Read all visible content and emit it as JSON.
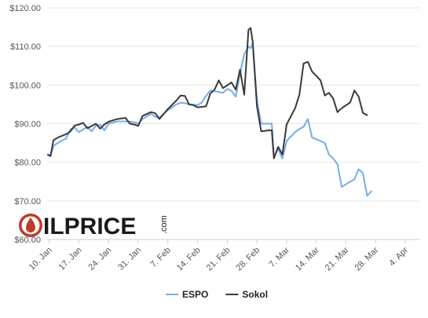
{
  "chart_data": {
    "type": "line",
    "title": "",
    "xlabel": "",
    "ylabel": "",
    "ylim": [
      60,
      120
    ],
    "ytick_labels": [
      "$60.00",
      "$70.00",
      "$80.00",
      "$90.00",
      "$100.00",
      "$110.00",
      "$120.00"
    ],
    "ytick_values": [
      60,
      70,
      80,
      90,
      100,
      110,
      120
    ],
    "xtick_labels": [
      "10. Jan",
      "17. Jan",
      "24. Jan",
      "31. Jan",
      "7. Feb",
      "14. Feb",
      "21. Feb",
      "28. Feb",
      "7. Mar",
      "14. Mar",
      "21. Mar",
      "28. Mar",
      "4. Apr"
    ],
    "xtick_days": [
      0,
      7,
      14,
      21,
      28,
      35,
      42,
      49,
      56,
      63,
      70,
      77,
      84
    ],
    "x_day_range": [
      -0.5,
      87.5
    ],
    "grid": true,
    "legend_position": "bottom-center",
    "x_units": "days since 10. Jan",
    "series": [
      {
        "name": "ESPO",
        "color": "#74ade6",
        "points": [
          [
            -0.3,
            81.8
          ],
          [
            0.3,
            81.6
          ],
          [
            1,
            84.2
          ],
          [
            2,
            85.0
          ],
          [
            4,
            86.2
          ],
          [
            5,
            88.6
          ],
          [
            6,
            89.0
          ],
          [
            7,
            87.8
          ],
          [
            9,
            89.2
          ],
          [
            10,
            88.0
          ],
          [
            11,
            89.5
          ],
          [
            12,
            89.7
          ],
          [
            13,
            88.3
          ],
          [
            14,
            90.0
          ],
          [
            16,
            90.6
          ],
          [
            18,
            90.6
          ],
          [
            20,
            90.4
          ],
          [
            21,
            90.0
          ],
          [
            22,
            91.2
          ],
          [
            24,
            92.5
          ],
          [
            25,
            91.8
          ],
          [
            26,
            91.6
          ],
          [
            28,
            93.5
          ],
          [
            30,
            95.0
          ],
          [
            31,
            95.4
          ],
          [
            32,
            95.3
          ],
          [
            33,
            95.0
          ],
          [
            35,
            94.8
          ],
          [
            36,
            95.5
          ],
          [
            37,
            97.2
          ],
          [
            38,
            98.6
          ],
          [
            39,
            98.4
          ],
          [
            40,
            98.2
          ],
          [
            41,
            98.0
          ],
          [
            42,
            99.0
          ],
          [
            43,
            98.5
          ],
          [
            44,
            97.0
          ],
          [
            45,
            103.0
          ],
          [
            46,
            108.0
          ],
          [
            47,
            110.0
          ],
          [
            47.5,
            109.5
          ],
          [
            48,
            110.8
          ],
          [
            49,
            96.0
          ],
          [
            50,
            90.0
          ],
          [
            52,
            90.0
          ],
          [
            52.5,
            90.0
          ],
          [
            53,
            81.3
          ],
          [
            54,
            83.5
          ],
          [
            55,
            81.0
          ],
          [
            56,
            85.5
          ],
          [
            58,
            87.8
          ],
          [
            59,
            88.6
          ],
          [
            60,
            89.2
          ],
          [
            61,
            91.2
          ],
          [
            62,
            86.4
          ],
          [
            64,
            85.5
          ],
          [
            65,
            85.0
          ],
          [
            66,
            82.0
          ],
          [
            67,
            81.0
          ],
          [
            68,
            79.5
          ],
          [
            69,
            73.6
          ],
          [
            71,
            75.0
          ],
          [
            72,
            75.6
          ],
          [
            73,
            78.2
          ],
          [
            74,
            77.2
          ],
          [
            75,
            71.3
          ],
          [
            76,
            72.5
          ]
        ]
      },
      {
        "name": "Sokol",
        "color": "#3a3a3a",
        "points": [
          [
            -0.3,
            82.0
          ],
          [
            0.3,
            81.6
          ],
          [
            1,
            85.7
          ],
          [
            2,
            86.4
          ],
          [
            4,
            87.3
          ],
          [
            5,
            88.0
          ],
          [
            6,
            89.5
          ],
          [
            7,
            89.8
          ],
          [
            8,
            90.2
          ],
          [
            9,
            88.8
          ],
          [
            11,
            90.0
          ],
          [
            12,
            88.7
          ],
          [
            13,
            89.8
          ],
          [
            14,
            90.5
          ],
          [
            16,
            91.2
          ],
          [
            18,
            91.5
          ],
          [
            19,
            90.0
          ],
          [
            20,
            89.8
          ],
          [
            21,
            89.4
          ],
          [
            22,
            92.0
          ],
          [
            24,
            93.0
          ],
          [
            25,
            92.7
          ],
          [
            26,
            91.2
          ],
          [
            28,
            93.8
          ],
          [
            30,
            96.0
          ],
          [
            31,
            97.3
          ],
          [
            32,
            97.2
          ],
          [
            33,
            95.0
          ],
          [
            34,
            94.8
          ],
          [
            35,
            94.2
          ],
          [
            37,
            94.5
          ],
          [
            38,
            97.8
          ],
          [
            39,
            98.8
          ],
          [
            40,
            101.2
          ],
          [
            41,
            99.2
          ],
          [
            43,
            100.7
          ],
          [
            44,
            98.8
          ],
          [
            45,
            104.0
          ],
          [
            46,
            97.5
          ],
          [
            47,
            114.3
          ],
          [
            47.5,
            114.8
          ],
          [
            48,
            111.2
          ],
          [
            49,
            94.5
          ],
          [
            50,
            88.0
          ],
          [
            52,
            88.3
          ],
          [
            52.5,
            88.3
          ],
          [
            53,
            81.0
          ],
          [
            54,
            84.0
          ],
          [
            55,
            82.0
          ],
          [
            56,
            89.8
          ],
          [
            58,
            94.0
          ],
          [
            59,
            97.5
          ],
          [
            60,
            105.6
          ],
          [
            61,
            106.0
          ],
          [
            62,
            103.5
          ],
          [
            64,
            101.2
          ],
          [
            65,
            97.3
          ],
          [
            66,
            98.0
          ],
          [
            67,
            96.5
          ],
          [
            68,
            93.0
          ],
          [
            69,
            94.0
          ],
          [
            71,
            95.5
          ],
          [
            72,
            98.6
          ],
          [
            73,
            97.0
          ],
          [
            74,
            92.8
          ],
          [
            75,
            92.2
          ]
        ]
      }
    ]
  },
  "watermark": {
    "text_main": "ILPRICE",
    "text_suffix": ".com",
    "drop_color": "#c0392b"
  }
}
